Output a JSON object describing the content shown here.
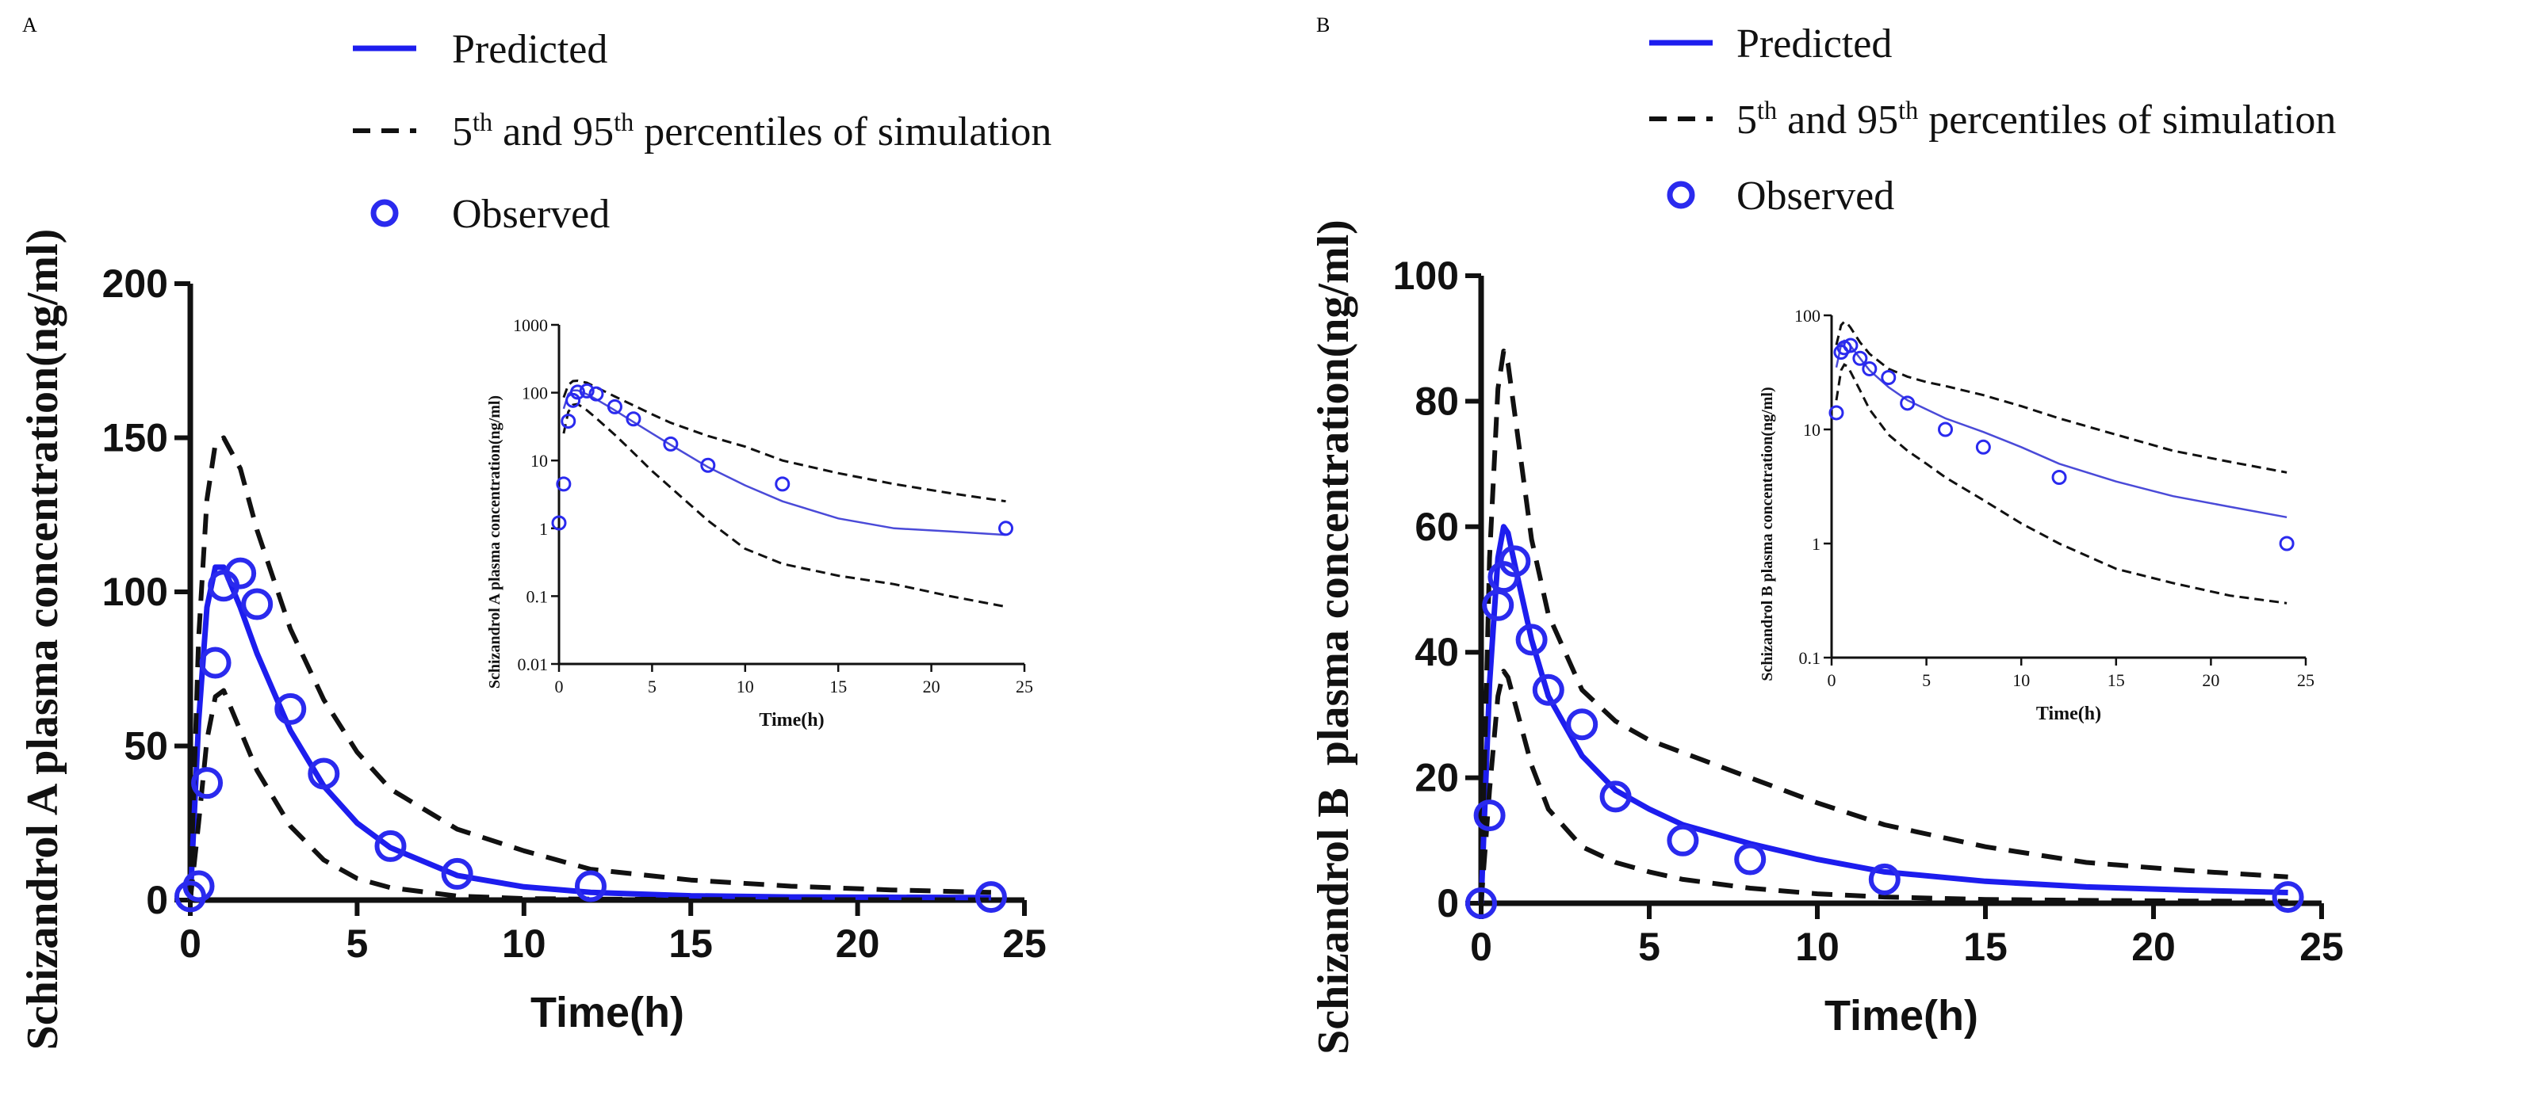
{
  "colors": {
    "predicted": "#1d1dee",
    "percentile": "#111111",
    "observed": "#2a2aee",
    "axis": "#111111"
  },
  "legend": {
    "predicted": "Predicted",
    "p_prefix_1": "5",
    "p_sup_1": "th",
    "p_mid": " and 95",
    "p_sup_2": "th",
    "p_suffix": " percentiles of simulation",
    "observed": "Observed"
  },
  "chart_data": [
    {
      "panel": "A",
      "type": "line",
      "title": "",
      "xlabel": "Time(h)",
      "ylabel": "Schizandrol A plasma concentration(ng/ml)",
      "xlim": [
        0,
        25
      ],
      "ylim": [
        0,
        200
      ],
      "xticks": [
        0,
        5,
        10,
        15,
        20,
        25
      ],
      "yticks": [
        0,
        50,
        100,
        150,
        200
      ],
      "series": [
        {
          "name": "Predicted",
          "x": [
            0,
            0.25,
            0.5,
            0.75,
            1,
            1.5,
            2,
            3,
            4,
            5,
            6,
            8,
            10,
            12,
            15,
            18,
            21,
            24
          ],
          "y": [
            0,
            58,
            95,
            108,
            108,
            95,
            80,
            55,
            37,
            25,
            17,
            8,
            4.3,
            2.5,
            1.4,
            1.0,
            0.9,
            0.8
          ]
        },
        {
          "name": "95th percentile",
          "x": [
            0,
            0.25,
            0.5,
            0.75,
            1,
            1.5,
            2,
            3,
            4,
            5,
            6,
            8,
            10,
            12,
            15,
            18,
            21,
            24
          ],
          "y": [
            0,
            85,
            130,
            148,
            150,
            140,
            120,
            88,
            65,
            48,
            36,
            23,
            16,
            10,
            6.5,
            4.5,
            3.3,
            2.5
          ]
        },
        {
          "name": "5th percentile",
          "x": [
            0,
            0.25,
            0.5,
            0.75,
            1,
            1.5,
            2,
            3,
            4,
            5,
            6,
            8,
            10,
            12,
            15,
            18,
            21,
            24
          ],
          "y": [
            0,
            25,
            52,
            66,
            68,
            55,
            42,
            24,
            13,
            7,
            4,
            1.3,
            0.5,
            0.3,
            0.2,
            0.15,
            0.1,
            0.07
          ]
        },
        {
          "name": "Observed",
          "x": [
            0,
            0.25,
            0.5,
            0.75,
            1,
            1.5,
            2,
            3,
            4,
            6,
            8,
            12,
            24
          ],
          "y": [
            1.2,
            4.5,
            38,
            77,
            102,
            106,
            96,
            62,
            41,
            17.5,
            8.5,
            4.5,
            1.0
          ]
        }
      ],
      "inset": {
        "xlabel": "Time(h)",
        "ylabel": "Schizandrol A plasma concentration(ng/ml)",
        "yscale": "log",
        "xlim": [
          0,
          25
        ],
        "ylim": [
          0.01,
          1000
        ],
        "xticks": [
          0,
          5,
          10,
          15,
          20,
          25
        ],
        "yticks": [
          0.01,
          0.1,
          1,
          10,
          100,
          1000
        ],
        "ytick_labels": [
          "0.01",
          "0.1",
          "1",
          "10",
          "100",
          "1000"
        ]
      }
    },
    {
      "panel": "B",
      "type": "line",
      "title": "",
      "xlabel": "Time(h)",
      "ylabel": "Schizandrol B  plasma concentration(ng/ml)",
      "xlim": [
        0,
        25
      ],
      "ylim": [
        0,
        100
      ],
      "xticks": [
        0,
        5,
        10,
        15,
        20,
        25
      ],
      "yticks": [
        0,
        20,
        40,
        60,
        80,
        100
      ],
      "series": [
        {
          "name": "Predicted",
          "x": [
            0,
            0.25,
            0.5,
            0.67,
            0.8,
            1,
            1.5,
            2,
            3,
            4,
            5,
            6,
            8,
            10,
            12,
            15,
            18,
            21,
            24
          ],
          "y": [
            0,
            35,
            55,
            60,
            59,
            54,
            42,
            33,
            23.5,
            18,
            15,
            12.5,
            9.5,
            7,
            5,
            3.5,
            2.6,
            2.1,
            1.7
          ]
        },
        {
          "name": "95th percentile",
          "x": [
            0,
            0.25,
            0.5,
            0.67,
            0.8,
            1,
            1.5,
            2,
            3,
            4,
            5,
            6,
            8,
            10,
            12,
            15,
            18,
            21,
            24
          ],
          "y": [
            0,
            55,
            82,
            88,
            86,
            78,
            58,
            46,
            34,
            29,
            26,
            24,
            20,
            16,
            12.5,
            9,
            6.5,
            5.2,
            4.2
          ]
        },
        {
          "name": "5th percentile",
          "x": [
            0,
            0.25,
            0.5,
            0.67,
            0.8,
            1,
            1.5,
            2,
            3,
            4,
            5,
            6,
            8,
            10,
            12,
            15,
            18,
            21,
            24
          ],
          "y": [
            0,
            18,
            33,
            37,
            36,
            32,
            22,
            15,
            9,
            6.5,
            5,
            3.8,
            2.4,
            1.5,
            1.0,
            0.6,
            0.45,
            0.35,
            0.3
          ]
        },
        {
          "name": "Observed",
          "x": [
            0,
            0.25,
            0.5,
            0.67,
            1,
            1.5,
            2,
            3,
            4,
            6,
            8,
            12,
            24
          ],
          "y": [
            0,
            14,
            47.5,
            52,
            54.5,
            42,
            34,
            28.5,
            17,
            10,
            7,
            3.8,
            1.0
          ]
        }
      ],
      "inset": {
        "xlabel": "Time(h)",
        "ylabel": "Schizandrol B plasma concentration(ng/ml)",
        "yscale": "log",
        "xlim": [
          0,
          25
        ],
        "ylim": [
          0.1,
          100
        ],
        "xticks": [
          0,
          5,
          10,
          15,
          20,
          25
        ],
        "yticks": [
          0.1,
          1,
          10,
          100
        ],
        "ytick_labels": [
          "0.1",
          "1",
          "10",
          "100"
        ]
      }
    }
  ],
  "panel_labels": [
    "A",
    "B"
  ]
}
